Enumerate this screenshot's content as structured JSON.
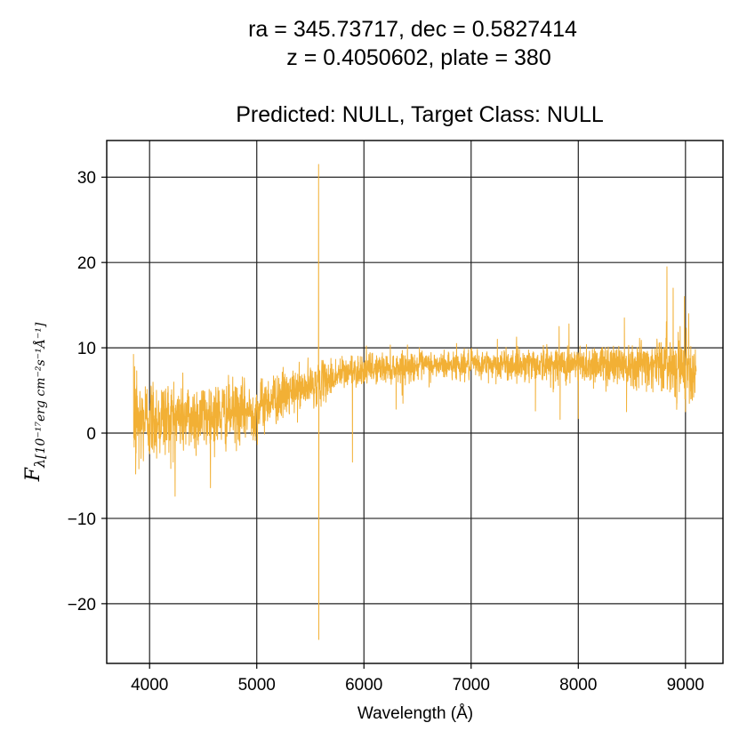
{
  "chart_data": {
    "type": "line",
    "title_lines": [
      "ra = 345.73717, dec = 0.5827414",
      "z = 0.4050602, plate = 380",
      "Predicted: NULL, Target Class: NULL"
    ],
    "xlabel": "Wavelength (Å)",
    "ylabel": {
      "symbol": "F",
      "subscript": "λ",
      "units": "[10⁻¹⁷erg cm⁻²s⁻¹Å⁻¹]"
    },
    "xlim": [
      3600,
      9350
    ],
    "ylim": [
      -27,
      34.3
    ],
    "xticks": [
      4000,
      5000,
      6000,
      7000,
      8000,
      9000
    ],
    "yticks": [
      -20,
      -10,
      0,
      10,
      20,
      30
    ],
    "xtick_labels": [
      "4000",
      "5000",
      "6000",
      "7000",
      "8000",
      "9000"
    ],
    "ytick_labels": [
      "−20",
      "−10",
      "0",
      "10",
      "20",
      "30"
    ],
    "grid": true,
    "series": [
      {
        "color": "#f2b035",
        "x_range": [
          3850,
          9100
        ],
        "trend": [
          [
            3850,
            1.5
          ],
          [
            4000,
            1.7
          ],
          [
            4500,
            2.0
          ],
          [
            5000,
            2.6
          ],
          [
            5100,
            3.8
          ],
          [
            5500,
            5.5
          ],
          [
            5800,
            7.0
          ],
          [
            6000,
            7.5
          ],
          [
            6500,
            7.9
          ],
          [
            7000,
            8.0
          ],
          [
            7500,
            8.1
          ],
          [
            8000,
            8.0
          ],
          [
            8500,
            8.2
          ],
          [
            9000,
            8.0
          ],
          [
            9100,
            7.5
          ]
        ],
        "noise_profile": [
          [
            3850,
            2.8
          ],
          [
            4100,
            2.4
          ],
          [
            4600,
            2.0
          ],
          [
            5000,
            1.6
          ],
          [
            5500,
            1.2
          ],
          [
            6000,
            0.9
          ],
          [
            7000,
            0.8
          ],
          [
            8000,
            1.1
          ],
          [
            8500,
            1.3
          ],
          [
            9000,
            1.7
          ],
          [
            9100,
            1.5
          ]
        ],
        "spikes": [
          [
            3860,
            7.8
          ],
          [
            3870,
            -4.8
          ],
          [
            3880,
            7.3
          ],
          [
            3900,
            -4.2
          ],
          [
            4220,
            -3.4
          ],
          [
            5577,
            31.5
          ],
          [
            5579,
            -24.2
          ],
          [
            5890,
            9.0
          ],
          [
            5893,
            -3.4
          ],
          [
            6300,
            2.8
          ],
          [
            6364,
            3.5
          ],
          [
            6864,
            10.5
          ],
          [
            7245,
            11.0
          ],
          [
            7600,
            2.6
          ],
          [
            7821,
            12.5
          ],
          [
            7830,
            1.6
          ],
          [
            7913,
            12.8
          ],
          [
            8000,
            1.7
          ],
          [
            8430,
            13.5
          ],
          [
            8450,
            2.5
          ],
          [
            8827,
            19.5
          ],
          [
            8885,
            17.0
          ],
          [
            8920,
            3.5
          ],
          [
            8950,
            12.5
          ],
          [
            8990,
            16.0
          ],
          [
            8995,
            4.0
          ],
          [
            9000,
            2.5
          ],
          [
            9030,
            14.0
          ],
          [
            9050,
            4.0
          ]
        ]
      }
    ]
  }
}
